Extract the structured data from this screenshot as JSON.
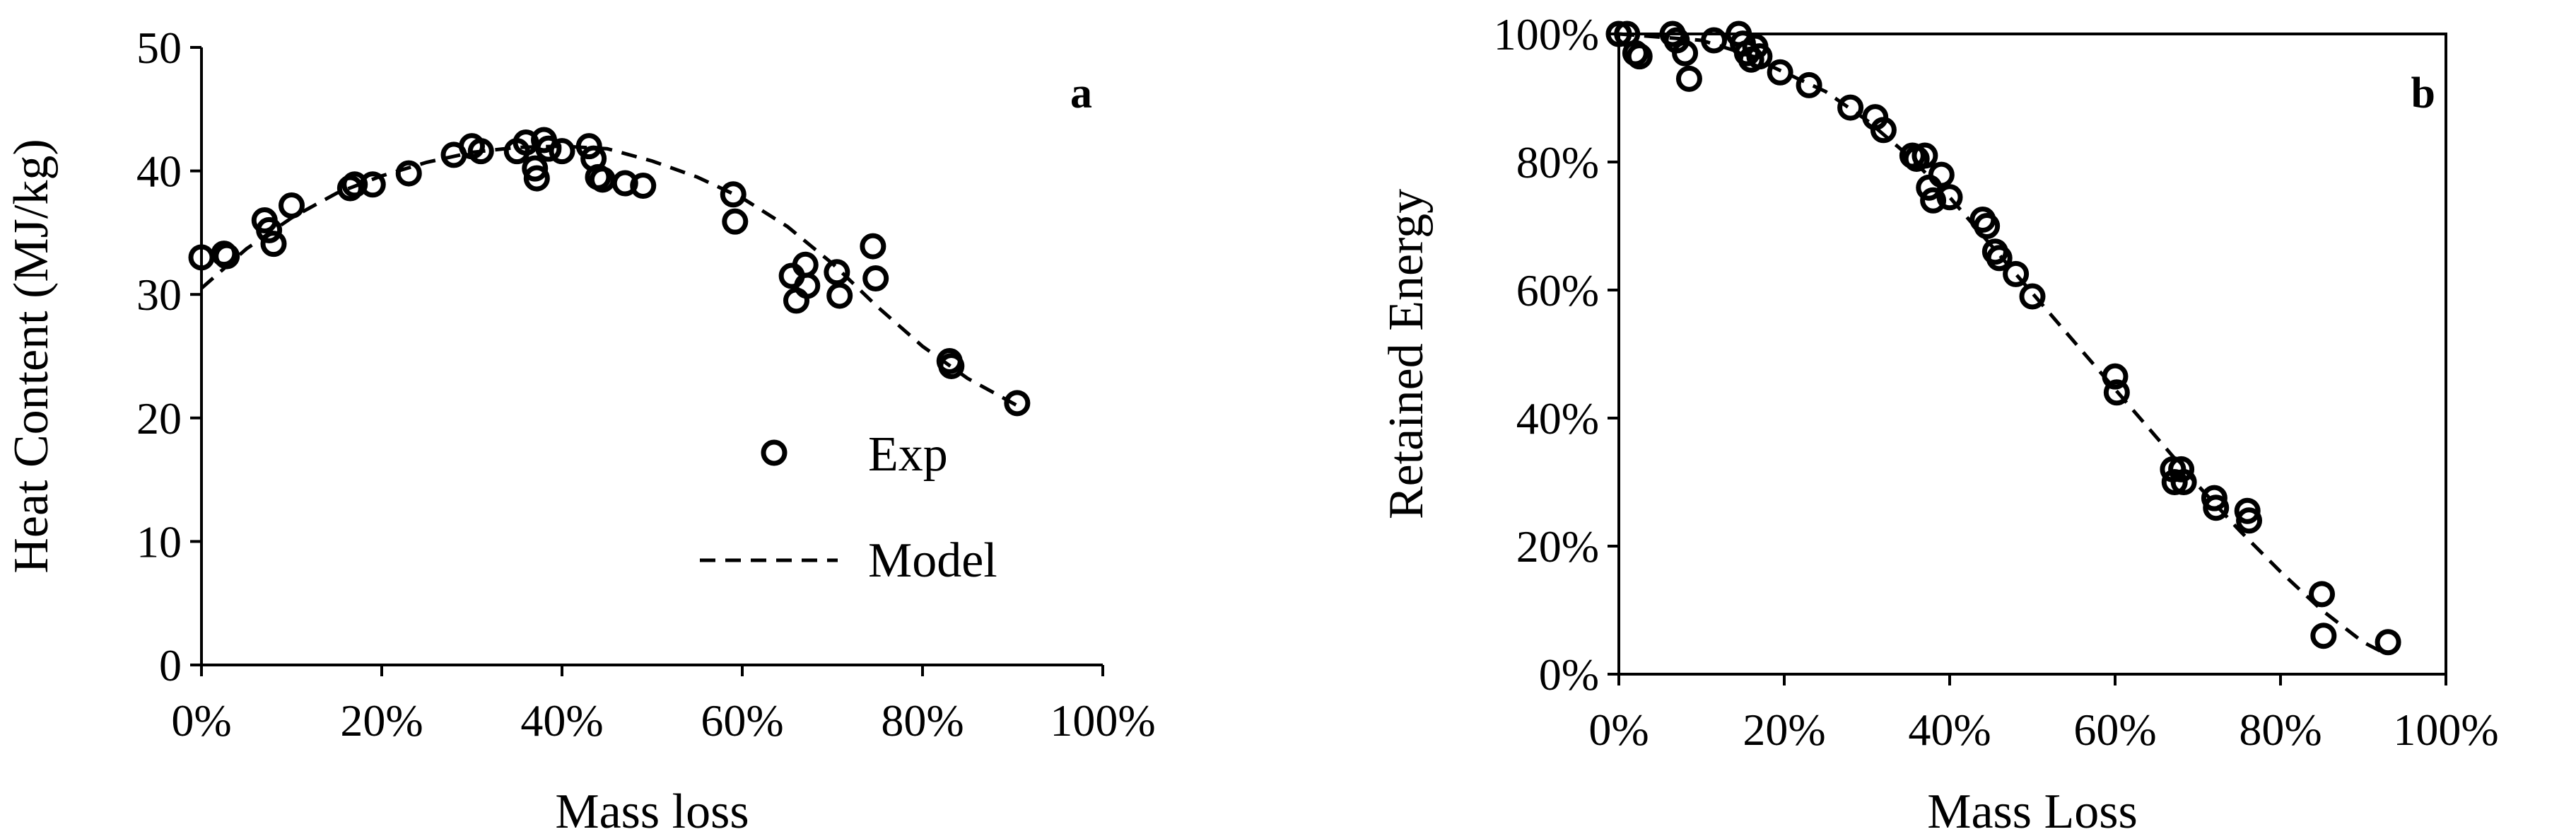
{
  "chart_data": [
    {
      "type": "scatter",
      "panel_label": "a",
      "xlabel": "Mass loss",
      "ylabel": "Heat Content (MJ/kg)",
      "xlim": [
        0,
        1
      ],
      "ylim": [
        0,
        50
      ],
      "x_ticks": [
        0,
        0.2,
        0.4,
        0.6,
        0.8,
        1.0
      ],
      "x_tick_labels": [
        "0%",
        "20%",
        "40%",
        "60%",
        "80%",
        "100%"
      ],
      "y_ticks": [
        0,
        10,
        20,
        30,
        40,
        50
      ],
      "y_tick_labels": [
        "0",
        "10",
        "20",
        "30",
        "40",
        "50"
      ],
      "grid": false,
      "legend_position": "lower-right",
      "legend": [
        {
          "label": "Exp",
          "style": "open-circle"
        },
        {
          "label": "Model",
          "style": "dashed-line"
        }
      ],
      "series": [
        {
          "name": "Exp",
          "kind": "points",
          "points": [
            [
              0.0,
              33.0
            ],
            [
              0.025,
              33.3
            ],
            [
              0.028,
              33.1
            ],
            [
              0.07,
              36.0
            ],
            [
              0.075,
              35.2
            ],
            [
              0.08,
              34.1
            ],
            [
              0.1,
              37.2
            ],
            [
              0.165,
              38.6
            ],
            [
              0.17,
              38.9
            ],
            [
              0.19,
              38.9
            ],
            [
              0.23,
              39.8
            ],
            [
              0.28,
              41.3
            ],
            [
              0.3,
              42.0
            ],
            [
              0.31,
              41.6
            ],
            [
              0.35,
              41.6
            ],
            [
              0.36,
              42.3
            ],
            [
              0.37,
              40.2
            ],
            [
              0.372,
              39.4
            ],
            [
              0.38,
              42.5
            ],
            [
              0.385,
              41.8
            ],
            [
              0.4,
              41.6
            ],
            [
              0.43,
              42.0
            ],
            [
              0.435,
              41.0
            ],
            [
              0.44,
              39.5
            ],
            [
              0.445,
              39.3
            ],
            [
              0.47,
              39.0
            ],
            [
              0.49,
              38.8
            ],
            [
              0.59,
              38.1
            ],
            [
              0.592,
              35.9
            ],
            [
              0.655,
              31.5
            ],
            [
              0.66,
              29.5
            ],
            [
              0.67,
              32.4
            ],
            [
              0.672,
              30.7
            ],
            [
              0.705,
              31.8
            ],
            [
              0.708,
              29.9
            ],
            [
              0.745,
              33.9
            ],
            [
              0.748,
              31.3
            ],
            [
              0.83,
              24.6
            ],
            [
              0.832,
              24.2
            ],
            [
              0.905,
              21.2
            ]
          ]
        },
        {
          "name": "Model",
          "kind": "line",
          "points": [
            [
              0.0,
              30.5
            ],
            [
              0.05,
              33.7
            ],
            [
              0.1,
              36.2
            ],
            [
              0.15,
              38.2
            ],
            [
              0.2,
              39.6
            ],
            [
              0.25,
              40.7
            ],
            [
              0.3,
              41.5
            ],
            [
              0.35,
              41.9
            ],
            [
              0.4,
              42.0
            ],
            [
              0.45,
              41.8
            ],
            [
              0.5,
              40.8
            ],
            [
              0.55,
              39.5
            ],
            [
              0.6,
              37.8
            ],
            [
              0.65,
              35.5
            ],
            [
              0.7,
              32.5
            ],
            [
              0.75,
              29.0
            ],
            [
              0.8,
              25.8
            ],
            [
              0.85,
              23.2
            ],
            [
              0.905,
              21.0
            ]
          ]
        }
      ]
    },
    {
      "type": "scatter",
      "panel_label": "b",
      "xlabel": "Mass Loss",
      "ylabel": "Retained Energy",
      "xlim": [
        0,
        1
      ],
      "ylim": [
        0,
        1
      ],
      "x_ticks": [
        0,
        0.2,
        0.4,
        0.6,
        0.8,
        1.0
      ],
      "x_tick_labels": [
        "0%",
        "20%",
        "40%",
        "60%",
        "80%",
        "100%"
      ],
      "y_ticks": [
        0,
        0.2,
        0.4,
        0.6,
        0.8,
        1.0
      ],
      "y_tick_labels": [
        "0%",
        "20%",
        "40%",
        "60%",
        "80%",
        "100%"
      ],
      "grid": false,
      "series": [
        {
          "name": "Exp",
          "kind": "points",
          "points": [
            [
              0.0,
              1.0
            ],
            [
              0.01,
              1.0
            ],
            [
              0.02,
              0.97
            ],
            [
              0.025,
              0.965
            ],
            [
              0.065,
              1.0
            ],
            [
              0.07,
              0.99
            ],
            [
              0.08,
              0.97
            ],
            [
              0.085,
              0.93
            ],
            [
              0.115,
              0.99
            ],
            [
              0.145,
              1.0
            ],
            [
              0.15,
              0.985
            ],
            [
              0.155,
              0.97
            ],
            [
              0.16,
              0.96
            ],
            [
              0.165,
              0.98
            ],
            [
              0.17,
              0.965
            ],
            [
              0.195,
              0.94
            ],
            [
              0.23,
              0.92
            ],
            [
              0.28,
              0.885
            ],
            [
              0.31,
              0.87
            ],
            [
              0.32,
              0.85
            ],
            [
              0.355,
              0.81
            ],
            [
              0.36,
              0.805
            ],
            [
              0.37,
              0.81
            ],
            [
              0.375,
              0.76
            ],
            [
              0.38,
              0.74
            ],
            [
              0.39,
              0.78
            ],
            [
              0.4,
              0.745
            ],
            [
              0.44,
              0.71
            ],
            [
              0.445,
              0.7
            ],
            [
              0.455,
              0.66
            ],
            [
              0.46,
              0.65
            ],
            [
              0.48,
              0.625
            ],
            [
              0.5,
              0.59
            ],
            [
              0.6,
              0.465
            ],
            [
              0.602,
              0.44
            ],
            [
              0.67,
              0.32
            ],
            [
              0.672,
              0.3
            ],
            [
              0.68,
              0.32
            ],
            [
              0.683,
              0.3
            ],
            [
              0.72,
              0.275
            ],
            [
              0.722,
              0.26
            ],
            [
              0.76,
              0.255
            ],
            [
              0.762,
              0.24
            ],
            [
              0.85,
              0.125
            ],
            [
              0.852,
              0.06
            ],
            [
              0.93,
              0.05
            ]
          ]
        },
        {
          "name": "Model",
          "kind": "line",
          "points": [
            [
              0.0,
              1.0
            ],
            [
              0.05,
              0.995
            ],
            [
              0.1,
              0.99
            ],
            [
              0.15,
              0.97
            ],
            [
              0.2,
              0.94
            ],
            [
              0.25,
              0.91
            ],
            [
              0.3,
              0.865
            ],
            [
              0.35,
              0.81
            ],
            [
              0.4,
              0.745
            ],
            [
              0.45,
              0.67
            ],
            [
              0.5,
              0.595
            ],
            [
              0.55,
              0.52
            ],
            [
              0.6,
              0.445
            ],
            [
              0.65,
              0.37
            ],
            [
              0.7,
              0.295
            ],
            [
              0.75,
              0.225
            ],
            [
              0.8,
              0.16
            ],
            [
              0.85,
              0.1
            ],
            [
              0.9,
              0.05
            ],
            [
              0.93,
              0.03
            ]
          ]
        }
      ]
    }
  ]
}
